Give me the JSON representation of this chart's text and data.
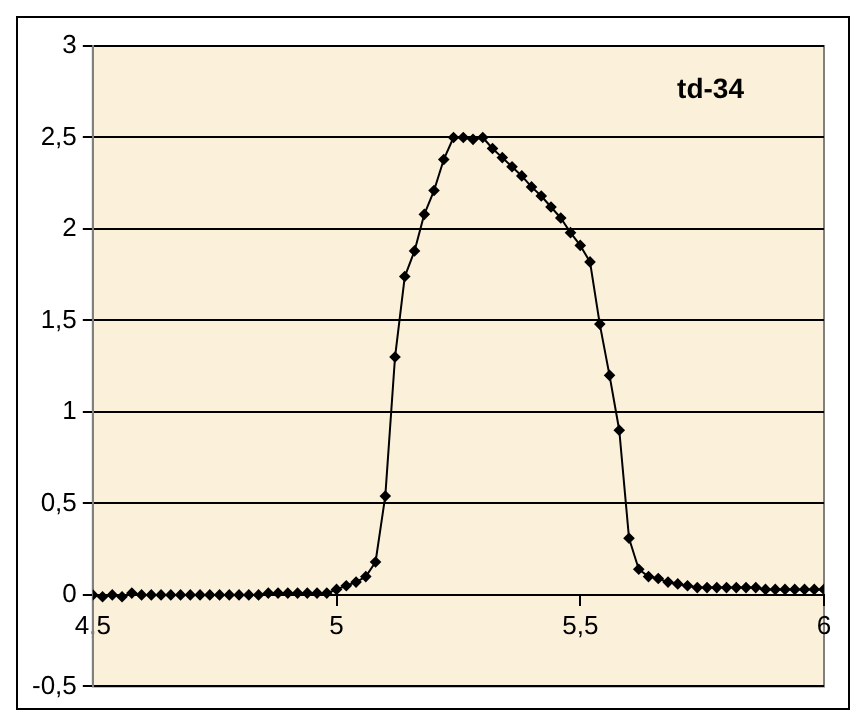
{
  "chart_data": {
    "type": "line",
    "title": "td-34",
    "x": [
      4.5,
      4.52,
      4.54,
      4.56,
      4.58,
      4.6,
      4.62,
      4.64,
      4.66,
      4.68,
      4.7,
      4.72,
      4.74,
      4.76,
      4.78,
      4.8,
      4.82,
      4.84,
      4.86,
      4.88,
      4.9,
      4.92,
      4.94,
      4.96,
      4.98,
      5.0,
      5.02,
      5.04,
      5.06,
      5.08,
      5.1,
      5.12,
      5.14,
      5.16,
      5.18,
      5.2,
      5.22,
      5.24,
      5.26,
      5.28,
      5.3,
      5.32,
      5.34,
      5.36,
      5.38,
      5.4,
      5.42,
      5.44,
      5.46,
      5.48,
      5.5,
      5.52,
      5.54,
      5.56,
      5.58,
      5.6,
      5.62,
      5.64,
      5.66,
      5.68,
      5.7,
      5.72,
      5.74,
      5.76,
      5.78,
      5.8,
      5.82,
      5.84,
      5.86,
      5.88,
      5.9,
      5.92,
      5.94,
      5.96,
      5.98,
      6.0
    ],
    "series": [
      {
        "color": "#000000",
        "values": [
          0,
          -0.01,
          0,
          -0.01,
          0.01,
          0,
          0,
          0,
          0,
          0,
          0,
          0,
          0,
          0,
          0,
          0,
          0,
          0,
          0.01,
          0.01,
          0.01,
          0.01,
          0.01,
          0.01,
          0.01,
          0.03,
          0.05,
          0.07,
          0.1,
          0.18,
          0.54,
          1.3,
          1.74,
          1.88,
          2.08,
          2.21,
          2.38,
          2.5,
          2.5,
          2.49,
          2.5,
          2.44,
          2.39,
          2.34,
          2.29,
          2.23,
          2.18,
          2.12,
          2.06,
          1.98,
          1.91,
          1.82,
          1.48,
          1.2,
          0.9,
          0.31,
          0.14,
          0.1,
          0.09,
          0.07,
          0.06,
          0.05,
          0.04,
          0.04,
          0.04,
          0.04,
          0.04,
          0.04,
          0.04,
          0.03,
          0.03,
          0.03,
          0.03,
          0.03,
          0.03,
          0.03
        ]
      }
    ],
    "xlim": [
      4.5,
      6
    ],
    "xticks": [
      {
        "value": 4.5,
        "label": "4,5"
      },
      5,
      {
        "value": 5.5,
        "label": "5,5"
      },
      6
    ],
    "ylim": [
      -0.5,
      3
    ],
    "yticks": [
      {
        "value": -0.5,
        "label": "-0,5"
      },
      0,
      {
        "value": 0.5,
        "label": "0,5"
      },
      1,
      {
        "value": 1.5,
        "label": "1,5"
      },
      2,
      {
        "value": 2.5,
        "label": "2,5"
      },
      3
    ],
    "grid": "y",
    "marker": "diamond",
    "line_style": "solid"
  }
}
